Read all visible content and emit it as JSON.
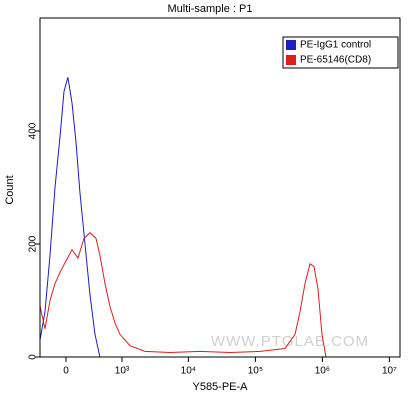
{
  "chart_data": {
    "type": "line",
    "title": "Multi-sample : P1",
    "x_label": "Y585-PE-A",
    "y_label": "Count",
    "xscale": "biexponential",
    "xlim": [
      -303,
      14400000
    ],
    "ylim": [
      0,
      600
    ],
    "xticks": [
      0,
      {
        "value": 1000,
        "label": "10³"
      },
      {
        "value": 10000,
        "label": "10⁴"
      },
      {
        "value": 100000,
        "label": "10⁵"
      },
      {
        "value": 1000000,
        "label": "10⁶"
      },
      {
        "value": 10000000,
        "label": "10⁷"
      }
    ],
    "yticks": [
      0,
      200,
      400
    ],
    "grid": false,
    "legend": "upper right",
    "annotation": "WWW.PTGLAB.COM",
    "series": [
      {
        "name": "PE-IgG1 control",
        "color": "#1c1cc8",
        "x": [
          -303,
          -234,
          -172,
          -115,
          -62,
          -20,
          20,
          62,
          105,
          149,
          209,
          275,
          349,
          431
        ],
        "values": [
          30,
          80,
          180,
          300,
          390,
          470,
          495,
          450,
          380,
          290,
          200,
          110,
          40,
          0
        ]
      },
      {
        "name": "PE-65146(CD8)",
        "color": "#e01c1c",
        "x": [
          -303,
          -234,
          -172,
          -115,
          -62,
          0,
          62,
          126,
          196,
          275,
          365,
          431,
          530,
          642,
          774,
          930,
          1326,
          2241,
          5304,
          14900,
          41700,
          117000,
          276500,
          389800,
          462800,
          549200,
          652300,
          748300,
          858800,
          985500,
          1131200
        ],
        "values": [
          90,
          50,
          100,
          130,
          150,
          170,
          190,
          175,
          210,
          220,
          210,
          180,
          130,
          90,
          60,
          40,
          20,
          10,
          8,
          10,
          8,
          10,
          15,
          40,
          80,
          130,
          165,
          160,
          120,
          40,
          0
        ]
      }
    ]
  }
}
